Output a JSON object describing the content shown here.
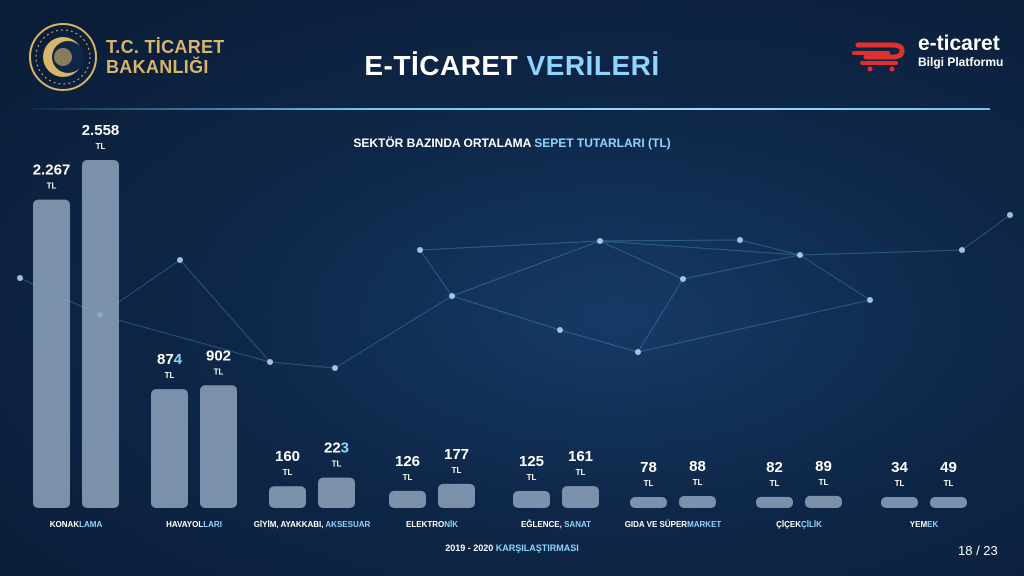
{
  "header": {
    "ministry_line1": "T.C. TİCARET",
    "ministry_line2": "BAKANLIĞI",
    "title_part1": "E-TİCARET",
    "title_part2": "VERİLERİ",
    "brand_main": "e-ticaret",
    "brand_sub": "Bilgi Platformu"
  },
  "colors": {
    "background": "#0e2748",
    "bar": "#8fa3bc",
    "accent": "#8fd4ff",
    "gold": "#d9b56a",
    "brand_red": "#e0312f"
  },
  "chart_data": {
    "type": "bar",
    "title_part1": "SEKTÖR BAZINDA ORTALAMA",
    "title_part2": "SEPET TUTARLARI (TL)",
    "unit_label": "TL",
    "footnote_part1": "2019 - 2020",
    "footnote_part2": "KARŞILAŞTIRMASI",
    "categories": [
      {
        "p1": "KONAK",
        "p2": "LAMA"
      },
      {
        "p1": "HAVAYOL",
        "p2": "LARI"
      },
      {
        "p1": "GİYİM, AYAKKABI, ",
        "p2": "AKSESUAR"
      },
      {
        "p1": "ELEKTRO",
        "p2": "NİK"
      },
      {
        "p1": "EĞLENCE, ",
        "p2": "SANAT"
      },
      {
        "p1": "GIDA VE SÜPER",
        "p2": "MARKET"
      },
      {
        "p1": "ÇİÇEK",
        "p2": "ÇİLİK"
      },
      {
        "p1": "YEM",
        "p2": "EK"
      }
    ],
    "series": [
      {
        "values": [
          2267,
          874,
          160,
          126,
          125,
          78,
          82,
          34
        ],
        "labels": [
          {
            "p1": "2.267",
            "p2": ""
          },
          {
            "p1": "87",
            "p2": "4"
          },
          {
            "p1": "160",
            "p2": ""
          },
          {
            "p1": "126",
            "p2": ""
          },
          {
            "p1": "125",
            "p2": ""
          },
          {
            "p1": "78",
            "p2": ""
          },
          {
            "p1": "82",
            "p2": ""
          },
          {
            "p1": "34",
            "p2": ""
          }
        ]
      },
      {
        "values": [
          2558,
          902,
          223,
          177,
          161,
          88,
          89,
          49
        ],
        "labels": [
          {
            "p1": "2.558",
            "p2": ""
          },
          {
            "p1": "902",
            "p2": ""
          },
          {
            "p1": "22",
            "p2": "3"
          },
          {
            "p1": "177",
            "p2": ""
          },
          {
            "p1": "161",
            "p2": ""
          },
          {
            "p1": "88",
            "p2": ""
          },
          {
            "p1": "89",
            "p2": ""
          },
          {
            "p1": "49",
            "p2": ""
          }
        ]
      }
    ]
  },
  "footer": {
    "page_number": "18 / 23"
  }
}
